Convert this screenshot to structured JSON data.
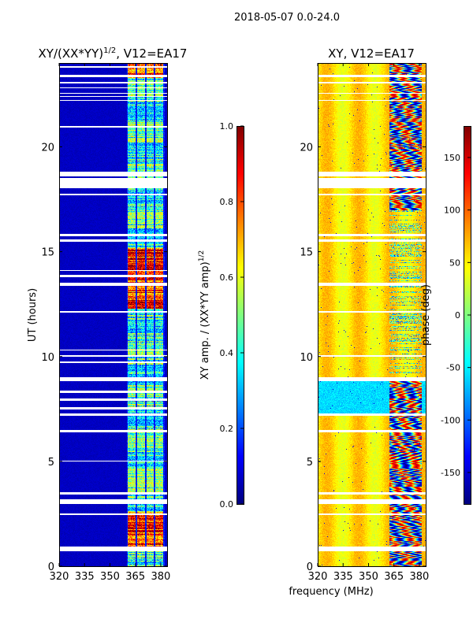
{
  "chart_data": [
    {
      "type": "heatmap",
      "suptitle": "2018-05-07 0.0-24.0",
      "title": "XY/(XX*YY)^1/2, V12=EA17",
      "title_main": "XY/(XX*YY)",
      "title_sup": "1/2",
      "title_tail": ", V12=EA17",
      "xlabel": "frequency (MHz)",
      "ylabel": "UT (hours)",
      "xlim": [
        320,
        383.75
      ],
      "ylim": [
        0,
        24
      ],
      "xticks": [
        "320",
        "335",
        "350",
        "365",
        "380"
      ],
      "yticks": [
        "0",
        "5",
        "10",
        "15",
        "20"
      ],
      "colorbar": {
        "label_main": "XY amp. / (XX*YY amp)",
        "label_sup": "1/2",
        "range": [
          0,
          1
        ],
        "ticks": [
          "0.0",
          "0.2",
          "0.4",
          "0.6",
          "0.8",
          "1.0"
        ],
        "cmap": "jet"
      },
      "description_values": {
        "background_level": 0.05,
        "high_band_start_mhz": 360,
        "high_band_level": 0.5
      },
      "flagged_hours": [
        [
          0.75,
          0.95
        ],
        [
          2.45,
          2.55
        ],
        [
          3.0,
          3.2
        ],
        [
          3.45,
          3.55
        ],
        [
          5.0,
          5.05
        ],
        [
          6.4,
          6.5
        ],
        [
          7.2,
          7.3
        ],
        [
          7.5,
          7.6
        ],
        [
          7.9,
          8.0
        ],
        [
          8.3,
          8.4
        ],
        [
          8.85,
          9.05
        ],
        [
          9.7,
          9.8
        ],
        [
          10.0,
          10.1
        ],
        [
          10.3,
          10.35
        ],
        [
          12.1,
          12.2
        ],
        [
          13.4,
          13.55
        ],
        [
          13.8,
          13.9
        ],
        [
          14.1,
          14.15
        ],
        [
          15.5,
          15.6
        ],
        [
          15.75,
          15.85
        ],
        [
          17.7,
          17.8
        ],
        [
          18.05,
          18.55
        ],
        [
          18.6,
          18.85
        ],
        [
          20.95,
          21.0
        ],
        [
          22.2,
          22.25
        ],
        [
          22.4,
          22.45
        ],
        [
          22.55,
          22.6
        ],
        [
          22.8,
          22.85
        ],
        [
          23.05,
          23.1
        ],
        [
          23.35,
          23.45
        ],
        [
          23.78,
          23.85
        ]
      ]
    },
    {
      "type": "heatmap",
      "title": "XY, V12=EA17",
      "xlim": [
        320,
        383.75
      ],
      "ylim": [
        0,
        24
      ],
      "xticks": [
        "320",
        "335",
        "350",
        "365",
        "380"
      ],
      "yticks": [
        "0",
        "5",
        "10",
        "15",
        "20"
      ],
      "colorbar": {
        "label": "phase (deg)",
        "range": [
          -180,
          180
        ],
        "ticks": [
          "-150",
          "-100",
          "-50",
          "0",
          "50",
          "100",
          "150"
        ],
        "cmap": "jet"
      },
      "flagged_hours": [
        [
          0.75,
          0.95
        ],
        [
          2.45,
          2.55
        ],
        [
          3.0,
          3.2
        ],
        [
          3.45,
          3.55
        ],
        [
          6.4,
          6.5
        ],
        [
          7.2,
          7.3
        ],
        [
          8.85,
          9.05
        ],
        [
          10.0,
          10.1
        ],
        [
          12.1,
          12.2
        ],
        [
          13.4,
          13.55
        ],
        [
          15.5,
          15.6
        ],
        [
          15.75,
          15.85
        ],
        [
          17.7,
          17.8
        ],
        [
          18.05,
          18.55
        ],
        [
          18.6,
          18.85
        ],
        [
          22.2,
          22.25
        ],
        [
          22.55,
          22.6
        ],
        [
          23.05,
          23.1
        ],
        [
          23.35,
          23.45
        ]
      ]
    }
  ],
  "shared_xlabel": "frequency (MHz)"
}
